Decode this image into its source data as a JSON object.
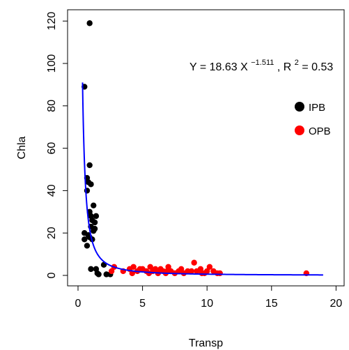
{
  "chart_data": {
    "type": "scatter",
    "xlabel": "Transp",
    "ylabel": "Chla",
    "xlim": [
      0,
      20
    ],
    "ylim": [
      0,
      120
    ],
    "x_ticks": [
      0,
      5,
      10,
      15,
      20
    ],
    "y_ticks": [
      0,
      20,
      40,
      60,
      80,
      100,
      120
    ],
    "grid": false,
    "legend_position": "right",
    "equation": {
      "prefix": "Y = 18.63 X",
      "exponent": "−1.511",
      "r2_prefix": ", R",
      "r2_sup": "2",
      "r2_value": " = 0.53"
    },
    "fit": {
      "a": 18.63,
      "b": -1.511,
      "x_start": 0.35,
      "x_end": 19.0,
      "color": "#0000ff"
    },
    "series": [
      {
        "name": "IPB",
        "color": "#000000",
        "points": [
          [
            0.9,
            119
          ],
          [
            0.5,
            89
          ],
          [
            0.9,
            52
          ],
          [
            0.7,
            46
          ],
          [
            0.8,
            44
          ],
          [
            1.0,
            43
          ],
          [
            0.7,
            40
          ],
          [
            1.2,
            33
          ],
          [
            0.9,
            30
          ],
          [
            1.0,
            28
          ],
          [
            1.4,
            28
          ],
          [
            1.1,
            26
          ],
          [
            1.3,
            25
          ],
          [
            1.0,
            23
          ],
          [
            1.3,
            22
          ],
          [
            1.2,
            21
          ],
          [
            0.5,
            20
          ],
          [
            0.8,
            19
          ],
          [
            0.5,
            17
          ],
          [
            0.9,
            18
          ],
          [
            1.1,
            17
          ],
          [
            0.7,
            14
          ],
          [
            1.0,
            3
          ],
          [
            1.4,
            3
          ],
          [
            1.5,
            1
          ],
          [
            1.6,
            0.5
          ],
          [
            2.0,
            5
          ],
          [
            2.2,
            0.5
          ],
          [
            2.5,
            0.5
          ]
        ]
      },
      {
        "name": "OPB",
        "color": "#ff0000",
        "points": [
          [
            2.8,
            4
          ],
          [
            2.6,
            2
          ],
          [
            4.0,
            3
          ],
          [
            4.3,
            4
          ],
          [
            4.6,
            2
          ],
          [
            4.8,
            3
          ],
          [
            5.0,
            3
          ],
          [
            5.3,
            2
          ],
          [
            5.5,
            1
          ],
          [
            5.8,
            2
          ],
          [
            6.0,
            3
          ],
          [
            6.2,
            1
          ],
          [
            6.4,
            3
          ],
          [
            6.6,
            2
          ],
          [
            6.8,
            1
          ],
          [
            7.0,
            4
          ],
          [
            7.2,
            2
          ],
          [
            7.5,
            1
          ],
          [
            7.8,
            2
          ],
          [
            8.2,
            1
          ],
          [
            8.5,
            2
          ],
          [
            8.8,
            2
          ],
          [
            9.0,
            6
          ],
          [
            9.2,
            2
          ],
          [
            9.5,
            3
          ],
          [
            9.8,
            1
          ],
          [
            10.2,
            4
          ],
          [
            10.5,
            2
          ],
          [
            10.8,
            1
          ],
          [
            11.0,
            1
          ],
          [
            17.7,
            1
          ],
          [
            4.2,
            1
          ],
          [
            5.6,
            4
          ],
          [
            6.9,
            2
          ],
          [
            8.0,
            3
          ],
          [
            9.6,
            1
          ],
          [
            3.5,
            2
          ],
          [
            10.0,
            2
          ]
        ]
      }
    ]
  }
}
